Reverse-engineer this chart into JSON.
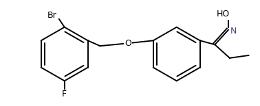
{
  "bg_color": "#ffffff",
  "line_color": "#000000",
  "label_color_black": "#000000",
  "label_color_blue": "#4040a0",
  "figsize": [
    3.78,
    1.55
  ],
  "dpi": 100,
  "lw": 1.4,
  "Br_label": "Br",
  "F_label": "F",
  "O_label": "O",
  "HO_label": "HO",
  "N_label": "N",
  "fontsize": 9.0
}
